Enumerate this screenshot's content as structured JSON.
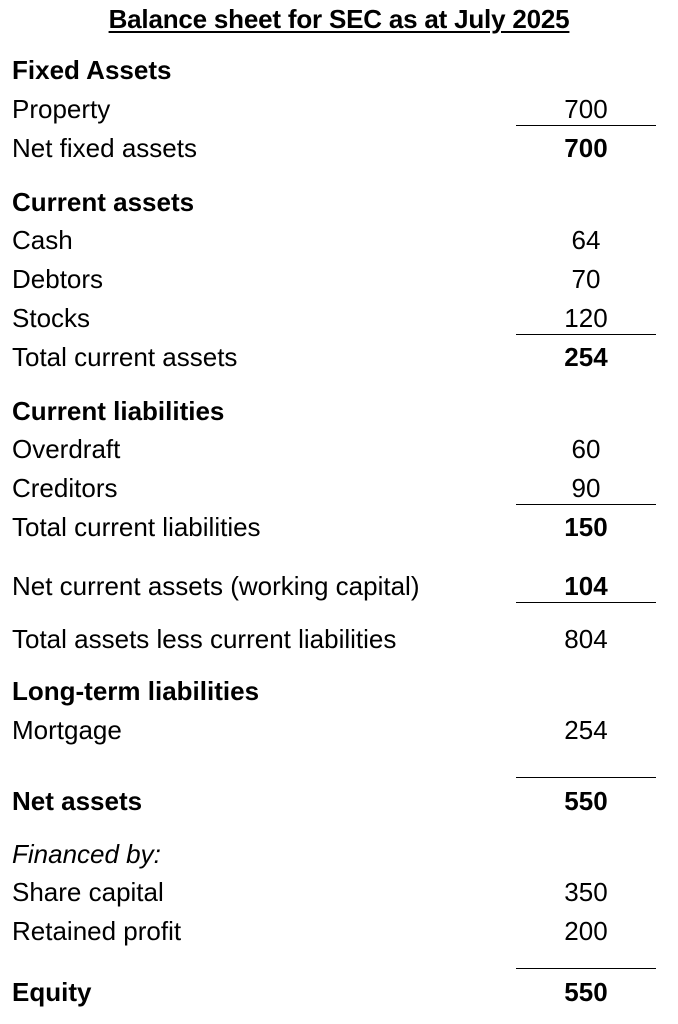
{
  "title": "Balance sheet for SEC as at July 2025",
  "sections": {
    "fixed_assets": {
      "heading": "Fixed Assets",
      "property": {
        "label": "Property",
        "value": "700"
      },
      "net_fixed_assets": {
        "label": "Net fixed assets",
        "value": "700"
      }
    },
    "current_assets": {
      "heading": "Current assets",
      "cash": {
        "label": "Cash",
        "value": "64"
      },
      "debtors": {
        "label": "Debtors",
        "value": "70"
      },
      "stocks": {
        "label": "Stocks",
        "value": "120"
      },
      "total": {
        "label": "Total current assets",
        "value": "254"
      }
    },
    "current_liabilities": {
      "heading": "Current liabilities",
      "overdraft": {
        "label": "Overdraft",
        "value": "60"
      },
      "creditors": {
        "label": "Creditors",
        "value": "90"
      },
      "total": {
        "label": "Total current liabilities",
        "value": "150"
      }
    },
    "net_current_assets": {
      "label": "Net current assets (working capital)",
      "value": "104"
    },
    "total_assets_less_cl": {
      "label": "Total assets less current liabilities",
      "value": "804"
    },
    "long_term_liabilities": {
      "heading": "Long-term liabilities",
      "mortgage": {
        "label": "Mortgage",
        "value": "254"
      }
    },
    "net_assets": {
      "label": "Net assets",
      "value": "550"
    },
    "financed_by": {
      "heading": "Financed by:",
      "share_capital": {
        "label": "Share capital",
        "value": "350"
      },
      "retained_profit": {
        "label": "Retained profit",
        "value": "200"
      }
    },
    "equity": {
      "label": "Equity",
      "value": "550"
    }
  }
}
